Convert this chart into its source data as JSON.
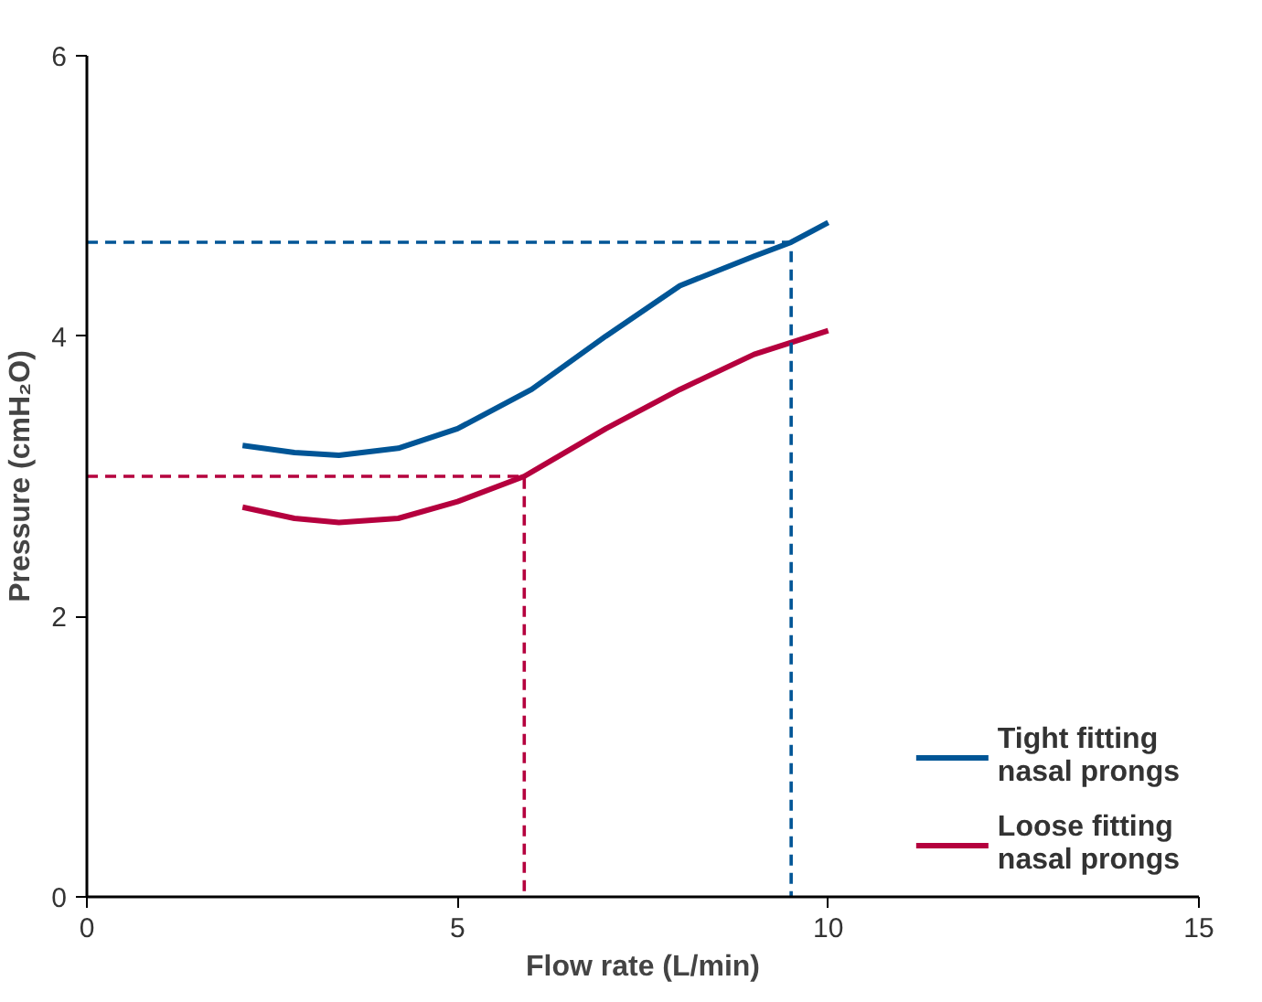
{
  "chart_data": {
    "type": "line",
    "xlabel": "Flow rate (L/min)",
    "ylabel": "Pressure (cmH₂O)",
    "xlim": [
      0,
      15
    ],
    "ylim": [
      0,
      6
    ],
    "xticks": [
      0,
      5,
      10,
      15
    ],
    "yticks": [
      0,
      2,
      4,
      6
    ],
    "grid": false,
    "legend": "bottom right",
    "marker": "none",
    "series": [
      {
        "name": "Tight fitting\nnasal prongs",
        "color": "#005596",
        "x": [
          2.1,
          2.8,
          3.4,
          4.2,
          5,
          6,
          7,
          8,
          9,
          9.5,
          10
        ],
        "values": [
          3.22,
          3.17,
          3.15,
          3.2,
          3.34,
          3.62,
          4.0,
          4.36,
          4.57,
          4.67,
          4.81
        ]
      },
      {
        "name": "Loose fitting\nnasal prongs",
        "color": "#b5003e",
        "x": [
          2.1,
          2.8,
          3.4,
          4.2,
          5,
          5.9,
          7,
          8,
          9,
          10
        ],
        "values": [
          2.78,
          2.7,
          2.67,
          2.7,
          2.82,
          3.0,
          3.34,
          3.62,
          3.87,
          4.04
        ]
      },
      {
        "color": "#005596",
        "line_style": "dashed",
        "x": [
          0,
          9.5,
          9.5
        ],
        "values": [
          4.67,
          4.67,
          0
        ]
      },
      {
        "color": "#b5003e",
        "line_style": "dashed",
        "x": [
          0,
          5.9,
          5.9
        ],
        "values": [
          3.0,
          3.0,
          0
        ]
      }
    ]
  }
}
